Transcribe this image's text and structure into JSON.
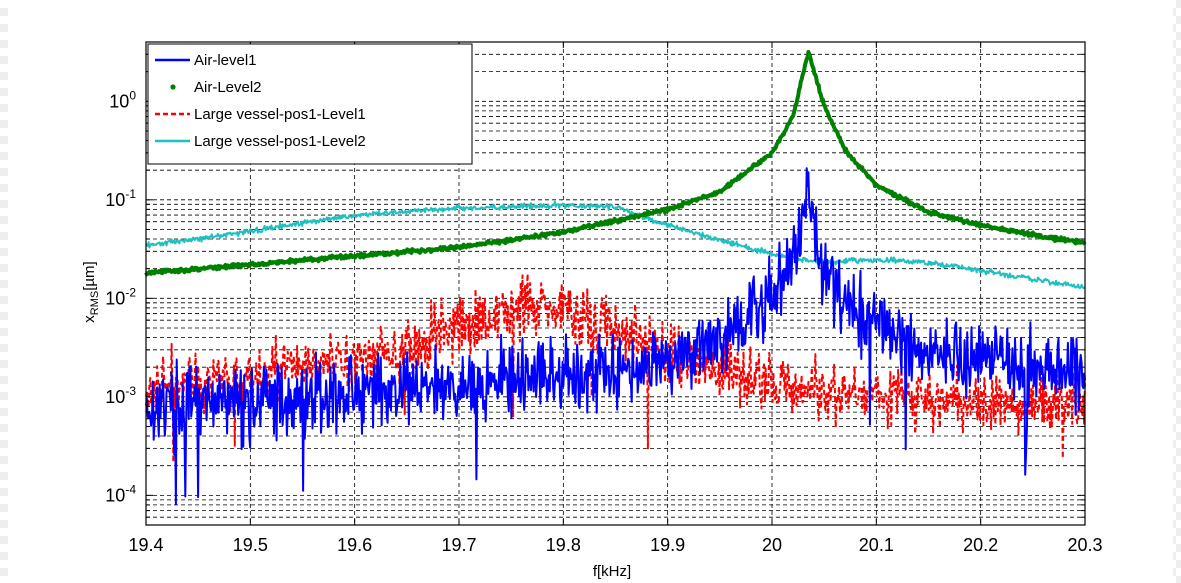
{
  "chart_data": {
    "type": "line",
    "title": "",
    "xlabel": "f[kHz]",
    "ylabel_main": "x",
    "ylabel_sub": "RMS",
    "ylabel_unit": "[µm]",
    "xlim": [
      19.4,
      20.3
    ],
    "ylim": [
      5e-05,
      4
    ],
    "yscale": "log",
    "grid": true,
    "legend_position": "top-left",
    "x_ticks": [
      "19.4",
      "19.5",
      "19.6",
      "19.7",
      "19.8",
      "19.9",
      "20",
      "20.1",
      "20.2",
      "20.3"
    ],
    "y_ticks": [
      {
        "base": "10",
        "exp": "0",
        "value": 1
      },
      {
        "base": "10",
        "exp": "-1",
        "value": 0.1
      },
      {
        "base": "10",
        "exp": "-2",
        "value": 0.01
      },
      {
        "base": "10",
        "exp": "-3",
        "value": 0.001
      },
      {
        "base": "10",
        "exp": "-4",
        "value": 0.0001
      }
    ],
    "series": [
      {
        "name": "Air-level1",
        "color": "#0000ff",
        "style": "solid",
        "noise": 0.55,
        "x": [
          19.4,
          19.5,
          19.6,
          19.7,
          19.8,
          19.9,
          19.95,
          20.0,
          20.02,
          20.035,
          20.05,
          20.07,
          20.1,
          20.15,
          20.2,
          20.3
        ],
        "y": [
          0.0008,
          0.0009,
          0.0011,
          0.0013,
          0.0016,
          0.0025,
          0.004,
          0.01,
          0.025,
          0.13,
          0.02,
          0.009,
          0.005,
          0.003,
          0.0024,
          0.0019
        ]
      },
      {
        "name": "Air-Level2",
        "color": "#008000",
        "style": "dots",
        "noise": 0.03,
        "x": [
          19.4,
          19.5,
          19.6,
          19.7,
          19.8,
          19.9,
          19.95,
          20.0,
          20.02,
          20.035,
          20.05,
          20.07,
          20.1,
          20.15,
          20.2,
          20.3
        ],
        "y": [
          0.018,
          0.022,
          0.027,
          0.033,
          0.047,
          0.08,
          0.12,
          0.3,
          0.7,
          3.2,
          0.9,
          0.32,
          0.14,
          0.075,
          0.055,
          0.036
        ]
      },
      {
        "name": "Large vessel-pos1-Level1",
        "color": "#ff0000",
        "style": "dashed",
        "noise": 0.45,
        "x": [
          19.4,
          19.5,
          19.6,
          19.7,
          19.78,
          19.85,
          19.9,
          20.0,
          20.1,
          20.2,
          20.3
        ],
        "y": [
          0.0012,
          0.0016,
          0.0025,
          0.005,
          0.009,
          0.005,
          0.0026,
          0.0013,
          0.001,
          0.0009,
          0.0009
        ]
      },
      {
        "name": "Large vessel-pos1-Level2",
        "color": "#20c0c0",
        "style": "solid",
        "noise": 0.04,
        "x": [
          19.4,
          19.5,
          19.6,
          19.7,
          19.8,
          19.85,
          19.9,
          20.0,
          20.05,
          20.1,
          20.15,
          20.2,
          20.3
        ],
        "y": [
          0.034,
          0.048,
          0.07,
          0.082,
          0.088,
          0.085,
          0.055,
          0.028,
          0.023,
          0.025,
          0.023,
          0.019,
          0.013
        ]
      }
    ]
  }
}
